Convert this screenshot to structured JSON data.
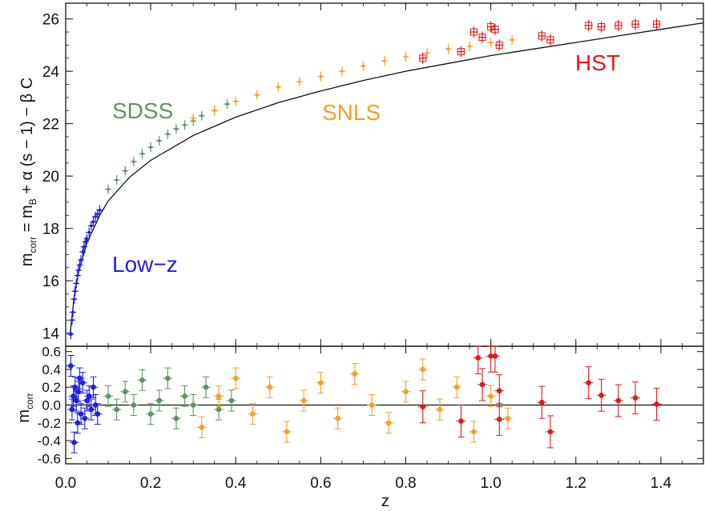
{
  "chart_data": [
    {
      "panel": "hubble",
      "type": "scatter",
      "xlabel": "z",
      "ylabel": "m",
      "ylabel_sub": "corr",
      "ylabel_rest": " = m",
      "ylabel_sub2": "B",
      "ylabel_tail": " + α (s − 1) − β C",
      "xlim": [
        0.0,
        1.5
      ],
      "ylim": [
        13.5,
        26.6
      ],
      "yticks": [
        "14",
        "16",
        "18",
        "20",
        "22",
        "24",
        "26"
      ],
      "xticks": [
        "0.0",
        "0.2",
        "0.4",
        "0.6",
        "0.8",
        "1.0",
        "1.2",
        "1.4"
      ],
      "annotations": [
        "Low−z",
        "SDSS",
        "SNLS",
        "HST"
      ],
      "series": [
        {
          "name": "Low−z",
          "color": "#1f1fdd",
          "x": [
            0.012,
            0.015,
            0.017,
            0.02,
            0.022,
            0.025,
            0.028,
            0.03,
            0.033,
            0.036,
            0.04,
            0.043,
            0.047,
            0.05,
            0.055,
            0.06,
            0.065,
            0.07,
            0.075,
            0.08
          ],
          "y": [
            13.95,
            14.5,
            14.8,
            15.3,
            15.6,
            15.9,
            16.2,
            16.4,
            16.6,
            16.8,
            17.1,
            17.3,
            17.5,
            17.6,
            17.85,
            18.1,
            18.25,
            18.45,
            18.55,
            18.7
          ]
        },
        {
          "name": "SDSS",
          "color": "#5e9464",
          "x": [
            0.1,
            0.12,
            0.14,
            0.16,
            0.18,
            0.2,
            0.22,
            0.24,
            0.26,
            0.28,
            0.3,
            0.32,
            0.35,
            0.38
          ],
          "y": [
            19.5,
            19.85,
            20.2,
            20.55,
            20.85,
            21.1,
            21.35,
            21.6,
            21.8,
            21.95,
            22.1,
            22.3,
            22.5,
            22.75
          ]
        },
        {
          "name": "SNLS",
          "color": "#f2a12a",
          "x": [
            0.3,
            0.35,
            0.4,
            0.45,
            0.5,
            0.55,
            0.6,
            0.65,
            0.7,
            0.75,
            0.8,
            0.85,
            0.9,
            0.95,
            1.0,
            1.05
          ],
          "y": [
            22.2,
            22.5,
            22.85,
            23.1,
            23.4,
            23.6,
            23.8,
            24.0,
            24.2,
            24.4,
            24.55,
            24.7,
            24.85,
            24.95,
            25.1,
            25.2
          ]
        },
        {
          "name": "HST",
          "color": "#dd1a1a",
          "x": [
            0.84,
            0.93,
            0.96,
            0.98,
            1.0,
            1.01,
            1.02,
            1.12,
            1.14,
            1.23,
            1.26,
            1.3,
            1.34,
            1.39
          ],
          "y": [
            24.5,
            24.75,
            25.5,
            25.3,
            25.7,
            25.6,
            25.0,
            25.35,
            25.2,
            25.75,
            25.7,
            25.75,
            25.8,
            25.8
          ]
        }
      ],
      "model_curve": {
        "x": [
          0.01,
          0.02,
          0.03,
          0.05,
          0.08,
          0.1,
          0.15,
          0.2,
          0.3,
          0.4,
          0.5,
          0.6,
          0.7,
          0.8,
          0.9,
          1.0,
          1.1,
          1.2,
          1.3,
          1.4,
          1.5
        ],
        "y": [
          13.9,
          15.4,
          16.3,
          17.45,
          18.5,
          19.05,
          19.95,
          20.6,
          21.55,
          22.25,
          22.8,
          23.25,
          23.65,
          24.0,
          24.3,
          24.6,
          24.85,
          25.1,
          25.35,
          25.6,
          25.85
        ]
      }
    },
    {
      "panel": "residuals",
      "type": "scatter",
      "xlabel": "z",
      "ylabel": "m",
      "ylabel_sub": "corr",
      "xlim": [
        0.0,
        1.5
      ],
      "ylim": [
        -0.66,
        0.66
      ],
      "yticks": [
        "0.6",
        "0.4",
        "0.2",
        "0.0",
        "-0.2",
        "-0.4",
        "-0.6"
      ],
      "series": [
        {
          "name": "Low−z",
          "color": "#1f1fdd",
          "x": [
            0.012,
            0.015,
            0.018,
            0.02,
            0.022,
            0.025,
            0.028,
            0.03,
            0.033,
            0.036,
            0.04,
            0.045,
            0.05,
            0.055,
            0.06,
            0.065,
            0.07,
            0.075
          ],
          "y": [
            0.44,
            -0.05,
            0.1,
            -0.42,
            0.2,
            0.05,
            -0.2,
            0.15,
            0.3,
            -0.1,
            0.25,
            -0.15,
            0.05,
            0.1,
            -0.05,
            0.2,
            0.0,
            -0.1
          ]
        },
        {
          "name": "SDSS",
          "color": "#5e9464",
          "x": [
            0.1,
            0.12,
            0.14,
            0.16,
            0.18,
            0.2,
            0.22,
            0.24,
            0.26,
            0.28,
            0.3,
            0.33,
            0.36,
            0.39
          ],
          "y": [
            0.1,
            -0.05,
            0.15,
            0.0,
            0.28,
            -0.1,
            0.05,
            0.3,
            -0.15,
            0.1,
            0.0,
            0.2,
            -0.05,
            0.05
          ]
        },
        {
          "name": "SNLS",
          "color": "#f2a12a",
          "x": [
            0.32,
            0.36,
            0.4,
            0.44,
            0.48,
            0.52,
            0.56,
            0.6,
            0.64,
            0.68,
            0.72,
            0.76,
            0.8,
            0.84,
            0.88,
            0.92,
            0.96,
            1.0,
            1.04
          ],
          "y": [
            -0.25,
            0.1,
            0.3,
            -0.1,
            0.2,
            -0.3,
            0.05,
            0.25,
            -0.15,
            0.35,
            0.0,
            -0.2,
            0.15,
            0.4,
            -0.05,
            0.2,
            -0.3,
            0.1,
            -0.15
          ]
        },
        {
          "name": "HST",
          "color": "#dd1a1a",
          "x": [
            0.84,
            0.93,
            0.97,
            0.98,
            1.0,
            1.01,
            1.02,
            1.02,
            1.12,
            1.14,
            1.23,
            1.26,
            1.3,
            1.34,
            1.39
          ],
          "y": [
            -0.02,
            -0.18,
            0.53,
            0.23,
            0.55,
            0.55,
            0.16,
            -0.16,
            0.03,
            -0.3,
            0.25,
            0.11,
            0.05,
            0.08,
            0.01
          ]
        }
      ]
    }
  ]
}
